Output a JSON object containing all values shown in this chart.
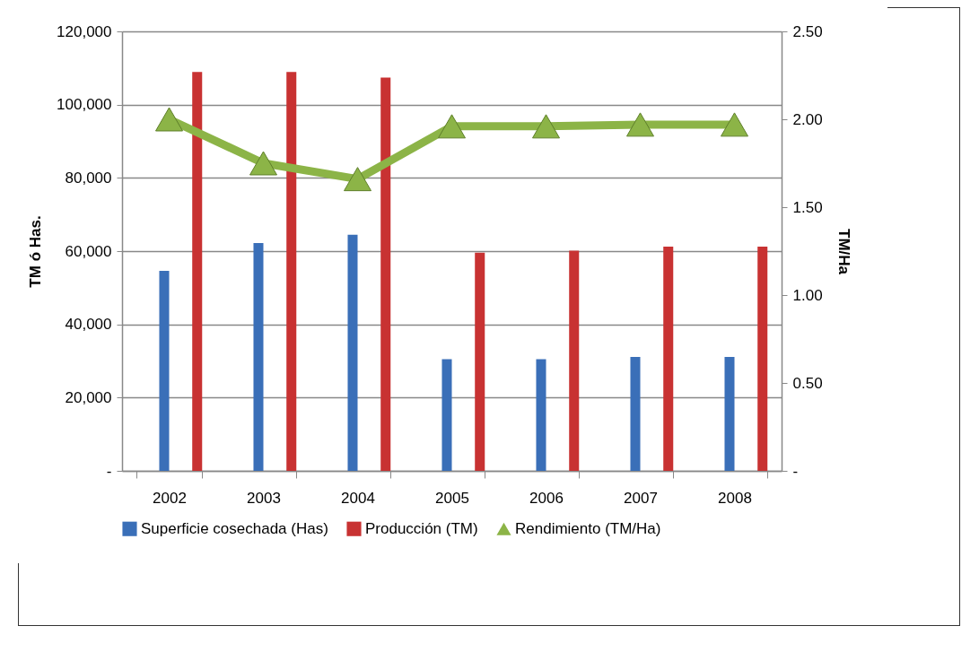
{
  "chart_data": {
    "type": "bar",
    "ylabel": "TM ó Has.",
    "y2label": "TM/Ha",
    "categories": [
      "2002",
      "2003",
      "2004",
      "2005",
      "2006",
      "2007",
      "2008"
    ],
    "series": [
      {
        "name": "Superficie cosechada (Has)",
        "color": "#3a6fb8",
        "values": [
          54600,
          62200,
          64500,
          30500,
          30500,
          31100,
          31100
        ]
      },
      {
        "name": "Producción (TM)",
        "color": "#c83232",
        "values": [
          108900,
          108900,
          107400,
          59600,
          60100,
          61200,
          61200
        ]
      },
      {
        "name": "Rendimiento (TM/Ha)",
        "type": "line",
        "axis": "y2",
        "color": "#8cb447",
        "marker": "triangle",
        "values": [
          2.0,
          1.75,
          1.66,
          1.96,
          1.96,
          1.97,
          1.97
        ]
      }
    ],
    "ylim": [
      0,
      120000
    ],
    "yticks": [
      {
        "value": 0,
        "label": "-"
      },
      {
        "value": 20000,
        "label": "20,000"
      },
      {
        "value": 40000,
        "label": "40,000"
      },
      {
        "value": 60000,
        "label": "60,000"
      },
      {
        "value": 80000,
        "label": "80,000"
      },
      {
        "value": 100000,
        "label": "100,000"
      },
      {
        "value": 120000,
        "label": "120,000"
      }
    ],
    "y2lim": [
      0,
      2.5
    ],
    "y2ticks": [
      {
        "value": 0,
        "label": "-"
      },
      {
        "value": 0.5,
        "label": "0.50"
      },
      {
        "value": 1,
        "label": "1.00"
      },
      {
        "value": 1.5,
        "label": "1.50"
      },
      {
        "value": 2,
        "label": "2.00"
      },
      {
        "value": 2.5,
        "label": "2.50"
      }
    ],
    "grid": "y",
    "legend": "bottom"
  }
}
